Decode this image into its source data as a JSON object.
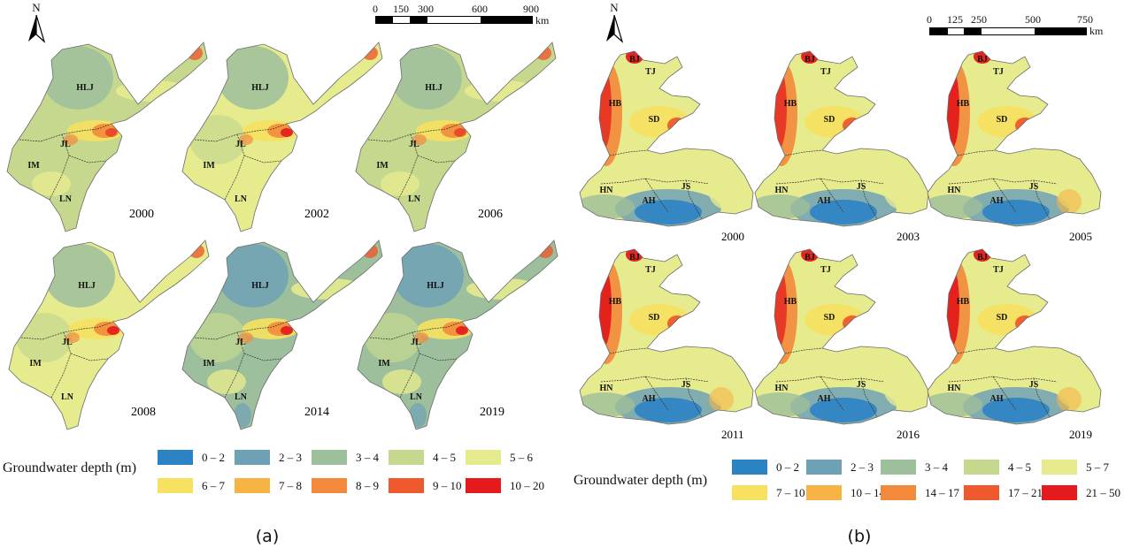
{
  "panel_a": {
    "label": "(a)",
    "north": "N",
    "scale": {
      "ticks": [
        "0",
        "150",
        "300",
        "600",
        "900"
      ],
      "unit": "km"
    },
    "region_labels": [
      "HLJ",
      "JL",
      "IM",
      "LN"
    ],
    "maps": [
      {
        "year": "2000",
        "tone": "mid"
      },
      {
        "year": "2002",
        "tone": "dry"
      },
      {
        "year": "2006",
        "tone": "mid"
      },
      {
        "year": "2008",
        "tone": "dry"
      },
      {
        "year": "2014",
        "tone": "wet"
      },
      {
        "year": "2019",
        "tone": "wet"
      }
    ],
    "legend": {
      "title": "Groundwater depth (m)",
      "classes": [
        {
          "label": "0 – 2",
          "color": "#2b83c4"
        },
        {
          "label": "2 – 3",
          "color": "#6fa1b6"
        },
        {
          "label": "3 – 4",
          "color": "#9dbf9c"
        },
        {
          "label": "4 – 5",
          "color": "#c5d88e"
        },
        {
          "label": "5 – 6",
          "color": "#e6eb8e"
        },
        {
          "label": "6 – 7",
          "color": "#f6e160"
        },
        {
          "label": "7 – 8",
          "color": "#f7b444"
        },
        {
          "label": "8 – 9",
          "color": "#f38a3b"
        },
        {
          "label": "9 – 10",
          "color": "#ee5a2e"
        },
        {
          "label": "10 – 20",
          "color": "#e41a1c"
        }
      ]
    }
  },
  "panel_b": {
    "label": "(b)",
    "north": "N",
    "scale": {
      "ticks": [
        "0",
        "125",
        "250",
        "500",
        "750"
      ],
      "unit": "km"
    },
    "region_labels": [
      "BJ",
      "TJ",
      "HB",
      "SD",
      "HN",
      "JS",
      "AH"
    ],
    "maps": [
      {
        "year": "2000",
        "tone": "mid"
      },
      {
        "year": "2003",
        "tone": "mid"
      },
      {
        "year": "2005",
        "tone": "dry"
      },
      {
        "year": "2011",
        "tone": "dry"
      },
      {
        "year": "2016",
        "tone": "mid"
      },
      {
        "year": "2019",
        "tone": "dry"
      }
    ],
    "legend": {
      "title": "Groundwater depth (m)",
      "classes": [
        {
          "label": "0 – 2",
          "color": "#2b83c4"
        },
        {
          "label": "2 – 3",
          "color": "#6fa1b6"
        },
        {
          "label": "3 – 4",
          "color": "#9dbf9c"
        },
        {
          "label": "4 – 5",
          "color": "#c5d88e"
        },
        {
          "label": "5 – 7",
          "color": "#e6eb8e"
        },
        {
          "label": "7 – 10",
          "color": "#f6e160"
        },
        {
          "label": "10 – 14",
          "color": "#f7b444"
        },
        {
          "label": "14 – 17",
          "color": "#f38a3b"
        },
        {
          "label": "17 – 21",
          "color": "#ee5a2e"
        },
        {
          "label": "21 – 50",
          "color": "#e41a1c"
        }
      ]
    }
  }
}
